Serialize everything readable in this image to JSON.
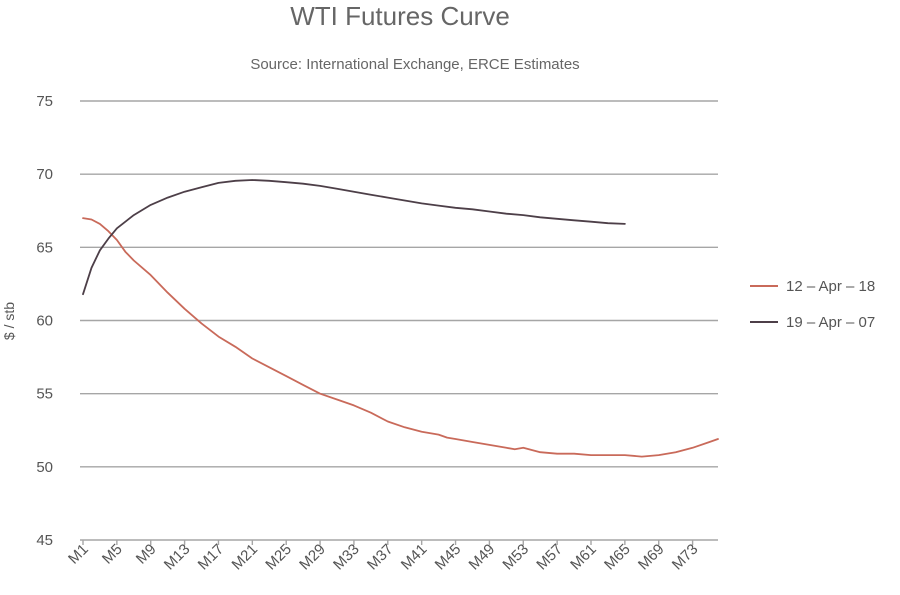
{
  "chart_data": {
    "type": "line",
    "title": "WTI Futures Curve",
    "subtitle": "Source: International Exchange, ERCE Estimates",
    "xlabel": "",
    "ylabel": "$ / stb",
    "ylim": [
      45,
      75
    ],
    "yticks": [
      45,
      50,
      55,
      60,
      65,
      70,
      75
    ],
    "grid": true,
    "legend_position": "right",
    "x_range": [
      1,
      76
    ],
    "x_tick_labels": [
      "M1",
      "M5",
      "M9",
      "M13",
      "M17",
      "M21",
      "M25",
      "M29",
      "M33",
      "M37",
      "M41",
      "M45",
      "M49",
      "M53",
      "M57",
      "M61",
      "M65",
      "M69",
      "M73"
    ],
    "x_tick_values": [
      1,
      5,
      9,
      13,
      17,
      21,
      25,
      29,
      33,
      37,
      41,
      45,
      49,
      53,
      57,
      61,
      65,
      69,
      73
    ],
    "series": [
      {
        "name": "12 – Apr – 18",
        "color": "#c96a5a",
        "x": [
          1,
          2,
          3,
          4,
          5,
          6,
          7,
          9,
          11,
          13,
          15,
          17,
          19,
          21,
          23,
          25,
          27,
          29,
          31,
          33,
          35,
          37,
          39,
          41,
          43,
          44,
          45,
          47,
          49,
          51,
          52,
          53,
          55,
          57,
          59,
          61,
          63,
          65,
          67,
          69,
          71,
          73,
          75,
          76
        ],
        "values": [
          67.0,
          66.9,
          66.6,
          66.1,
          65.5,
          64.7,
          64.1,
          63.1,
          61.9,
          60.8,
          59.8,
          58.9,
          58.2,
          57.4,
          56.8,
          56.2,
          55.6,
          55.0,
          54.6,
          54.2,
          53.7,
          53.1,
          52.7,
          52.4,
          52.2,
          52.0,
          51.9,
          51.7,
          51.5,
          51.3,
          51.2,
          51.3,
          51.0,
          50.9,
          50.9,
          50.8,
          50.8,
          50.8,
          50.7,
          50.8,
          51.0,
          51.3,
          51.7,
          51.9
        ]
      },
      {
        "name": "19 – Apr – 07",
        "color": "#4d3f48",
        "x": [
          1,
          2,
          3,
          4,
          5,
          7,
          9,
          11,
          13,
          15,
          17,
          19,
          21,
          23,
          25,
          27,
          29,
          31,
          33,
          35,
          37,
          39,
          41,
          43,
          45,
          47,
          49,
          51,
          53,
          55,
          57,
          59,
          61,
          63,
          65
        ],
        "values": [
          61.8,
          63.6,
          64.8,
          65.6,
          66.3,
          67.2,
          67.9,
          68.4,
          68.8,
          69.1,
          69.4,
          69.55,
          69.6,
          69.55,
          69.45,
          69.35,
          69.2,
          69.0,
          68.8,
          68.6,
          68.4,
          68.2,
          68.0,
          67.85,
          67.7,
          67.6,
          67.45,
          67.3,
          67.2,
          67.05,
          66.95,
          66.85,
          66.75,
          66.65,
          66.6
        ]
      }
    ]
  }
}
